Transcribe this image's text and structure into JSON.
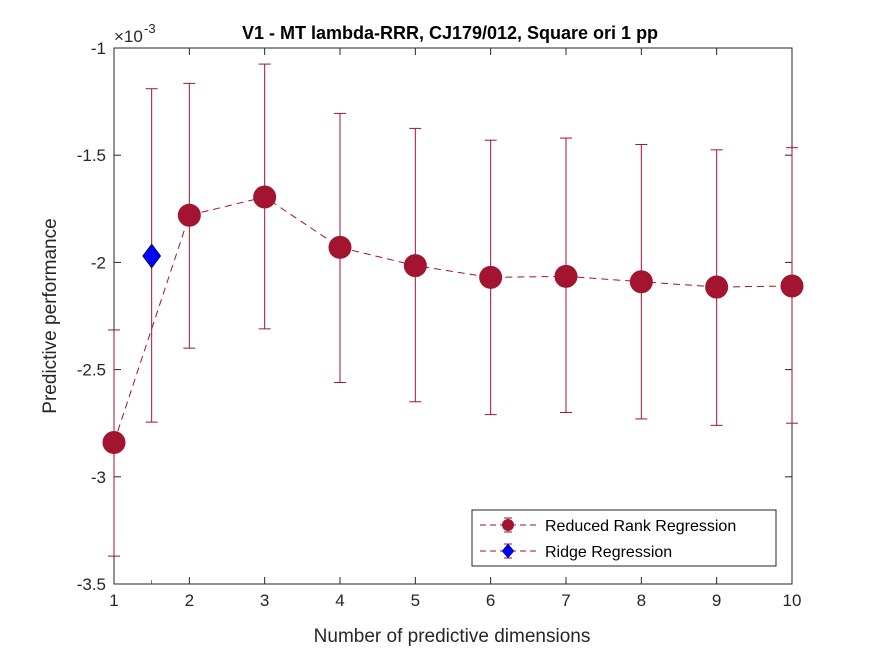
{
  "chart_data": {
    "type": "line",
    "title": "V1 - MT lambda-RRR, CJ179/012, Square ori 1 pp",
    "xlabel": "Number of predictive dimensions",
    "ylabel": "Predictive performance",
    "exponent_base": "×10",
    "exponent_power": "-3",
    "xlim": [
      1,
      10
    ],
    "ylim": [
      -3.5,
      -1.0
    ],
    "xticks": [
      1,
      2,
      3,
      4,
      5,
      6,
      7,
      8,
      9,
      10
    ],
    "yticks": [
      -3.5,
      -3,
      -2.5,
      -2,
      -1.5,
      -1
    ],
    "ytick_labels": [
      "-3.5",
      "-3",
      "-2.5",
      "-2",
      "-1.5",
      "-1"
    ],
    "grid": false,
    "legend_position": "bottom-right",
    "series": [
      {
        "name": "Reduced Rank Regression",
        "color": "#A2142F",
        "marker": "circle",
        "line_style": "dashed",
        "x": [
          1,
          2,
          3,
          4,
          5,
          6,
          7,
          8,
          9,
          10
        ],
        "y": [
          -2.84,
          -1.78,
          -1.695,
          -1.93,
          -2.015,
          -2.07,
          -2.065,
          -2.09,
          -2.115,
          -2.11
        ],
        "err_low": [
          -3.37,
          -2.4,
          -2.31,
          -2.56,
          -2.65,
          -2.71,
          -2.7,
          -2.73,
          -2.76,
          -2.75
        ],
        "err_high": [
          -2.315,
          -1.165,
          -1.075,
          -1.305,
          -1.375,
          -1.43,
          -1.42,
          -1.45,
          -1.475,
          -1.465
        ]
      },
      {
        "name": "Ridge Regression",
        "color": "#0000FF",
        "marker": "diamond",
        "line_style": "none",
        "errbar_color": "#A2142F",
        "x": [
          1.5
        ],
        "y": [
          -1.97
        ],
        "err_low": [
          -2.745
        ],
        "err_high": [
          -1.19
        ]
      }
    ]
  }
}
